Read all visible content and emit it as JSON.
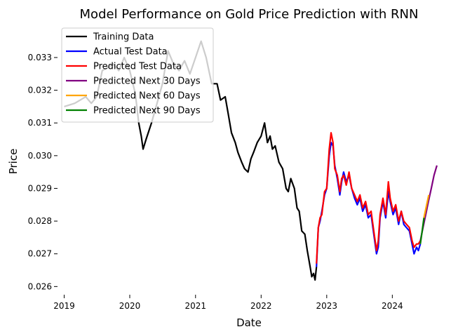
{
  "chart_data": {
    "type": "line",
    "title": "Model Performance on Gold Price Prediction with RNN",
    "xlabel": "Date",
    "ylabel": "Price",
    "xlim": [
      "2018-11-25",
      "2024-09-25"
    ],
    "ylim": [
      0.02575,
      0.0339
    ],
    "grid": false,
    "legend_position": "upper-left",
    "x_ticks": [
      "2019",
      "2020",
      "2021",
      "2022",
      "2023",
      "2024"
    ],
    "y_ticks": [
      "0.026",
      "0.027",
      "0.028",
      "0.029",
      "0.030",
      "0.031",
      "0.032",
      "0.033"
    ],
    "series": [
      {
        "name": "Training Data",
        "color": "#000000",
        "points": [
          [
            "2019-01-01",
            0.0315
          ],
          [
            "2019-03-01",
            0.0316
          ],
          [
            "2019-05-01",
            0.0318
          ],
          [
            "2019-06-01",
            0.0316
          ],
          [
            "2019-07-01",
            0.0318
          ],
          [
            "2019-08-01",
            0.0326
          ],
          [
            "2019-09-01",
            0.0327
          ],
          [
            "2019-10-01",
            0.0328
          ],
          [
            "2019-11-01",
            0.0326
          ],
          [
            "2019-12-01",
            0.033
          ],
          [
            "2020-01-01",
            0.0326
          ],
          [
            "2020-02-01",
            0.0319
          ],
          [
            "2020-02-20",
            0.031
          ],
          [
            "2020-03-05",
            0.0306
          ],
          [
            "2020-03-15",
            0.0302
          ],
          [
            "2020-04-01",
            0.0305
          ],
          [
            "2020-05-01",
            0.031
          ],
          [
            "2020-06-01",
            0.0316
          ],
          [
            "2020-07-01",
            0.0322
          ],
          [
            "2020-08-01",
            0.0332
          ],
          [
            "2020-09-01",
            0.0328
          ],
          [
            "2020-10-01",
            0.0326
          ],
          [
            "2020-11-01",
            0.0329
          ],
          [
            "2020-12-01",
            0.0325
          ],
          [
            "2021-01-01",
            0.033
          ],
          [
            "2021-02-01",
            0.0335
          ],
          [
            "2021-03-01",
            0.033
          ],
          [
            "2021-04-01",
            0.0322
          ],
          [
            "2021-05-01",
            0.0322
          ],
          [
            "2021-05-20",
            0.0317
          ],
          [
            "2021-06-15",
            0.0318
          ],
          [
            "2021-07-01",
            0.0313
          ],
          [
            "2021-07-20",
            0.0307
          ],
          [
            "2021-08-10",
            0.0304
          ],
          [
            "2021-08-25",
            0.0301
          ],
          [
            "2021-09-15",
            0.0298
          ],
          [
            "2021-10-01",
            0.0296
          ],
          [
            "2021-10-20",
            0.0295
          ],
          [
            "2021-11-05",
            0.0299
          ],
          [
            "2021-11-20",
            0.0301
          ],
          [
            "2021-12-10",
            0.0304
          ],
          [
            "2022-01-01",
            0.0306
          ],
          [
            "2022-01-20",
            0.031
          ],
          [
            "2022-02-05",
            0.0304
          ],
          [
            "2022-02-20",
            0.0306
          ],
          [
            "2022-03-05",
            0.0302
          ],
          [
            "2022-03-20",
            0.0303
          ],
          [
            "2022-04-10",
            0.0298
          ],
          [
            "2022-05-01",
            0.0296
          ],
          [
            "2022-05-20",
            0.029
          ],
          [
            "2022-06-01",
            0.0289
          ],
          [
            "2022-06-15",
            0.0293
          ],
          [
            "2022-07-05",
            0.029
          ],
          [
            "2022-07-20",
            0.0284
          ],
          [
            "2022-08-01",
            0.0283
          ],
          [
            "2022-08-15",
            0.0277
          ],
          [
            "2022-09-01",
            0.0276
          ],
          [
            "2022-09-15",
            0.0271
          ],
          [
            "2022-10-01",
            0.0266
          ],
          [
            "2022-10-10",
            0.0263
          ],
          [
            "2022-10-20",
            0.0264
          ],
          [
            "2022-10-28",
            0.0262
          ],
          [
            "2022-11-05",
            0.0266
          ]
        ]
      },
      {
        "name": "Actual Test Data",
        "color": "#0000ff",
        "points": [
          [
            "2022-11-05",
            0.0266
          ],
          [
            "2022-11-15",
            0.0278
          ],
          [
            "2022-11-25",
            0.028
          ],
          [
            "2022-12-05",
            0.0283
          ],
          [
            "2022-12-20",
            0.0288
          ],
          [
            "2023-01-01",
            0.029
          ],
          [
            "2023-01-15",
            0.03
          ],
          [
            "2023-01-25",
            0.0304
          ],
          [
            "2023-02-05",
            0.0303
          ],
          [
            "2023-02-15",
            0.0297
          ],
          [
            "2023-03-01",
            0.0293
          ],
          [
            "2023-03-15",
            0.0288
          ],
          [
            "2023-03-25",
            0.0292
          ],
          [
            "2023-04-05",
            0.0295
          ],
          [
            "2023-04-20",
            0.0292
          ],
          [
            "2023-05-05",
            0.0294
          ],
          [
            "2023-05-20",
            0.029
          ],
          [
            "2023-06-05",
            0.0287
          ],
          [
            "2023-06-20",
            0.0285
          ],
          [
            "2023-07-05",
            0.0287
          ],
          [
            "2023-07-20",
            0.0283
          ],
          [
            "2023-08-05",
            0.0285
          ],
          [
            "2023-08-20",
            0.0281
          ],
          [
            "2023-09-05",
            0.0282
          ],
          [
            "2023-09-20",
            0.0276
          ],
          [
            "2023-10-05",
            0.027
          ],
          [
            "2023-10-15",
            0.0272
          ],
          [
            "2023-10-25",
            0.0281
          ],
          [
            "2023-11-10",
            0.0286
          ],
          [
            "2023-11-25",
            0.0281
          ],
          [
            "2023-12-10",
            0.0289
          ],
          [
            "2023-12-20",
            0.0286
          ],
          [
            "2024-01-05",
            0.0282
          ],
          [
            "2024-01-20",
            0.0284
          ],
          [
            "2024-02-05",
            0.0279
          ],
          [
            "2024-02-20",
            0.0283
          ],
          [
            "2024-03-05",
            0.0279
          ],
          [
            "2024-03-20",
            0.0278
          ],
          [
            "2024-04-05",
            0.0277
          ],
          [
            "2024-04-20",
            0.0273
          ],
          [
            "2024-05-01",
            0.027
          ],
          [
            "2024-05-15",
            0.0272
          ],
          [
            "2024-05-25",
            0.0271
          ],
          [
            "2024-06-05",
            0.0273
          ]
        ]
      },
      {
        "name": "Predicted Test Data",
        "color": "#ff0000",
        "points": [
          [
            "2022-11-05",
            0.0267
          ],
          [
            "2022-11-15",
            0.0278
          ],
          [
            "2022-11-25",
            0.0281
          ],
          [
            "2022-12-05",
            0.0282
          ],
          [
            "2022-12-20",
            0.0289
          ],
          [
            "2023-01-01",
            0.029
          ],
          [
            "2023-01-15",
            0.0302
          ],
          [
            "2023-01-25",
            0.0307
          ],
          [
            "2023-02-05",
            0.0304
          ],
          [
            "2023-02-15",
            0.0296
          ],
          [
            "2023-03-01",
            0.0294
          ],
          [
            "2023-03-15",
            0.0289
          ],
          [
            "2023-03-25",
            0.0293
          ],
          [
            "2023-04-05",
            0.0294
          ],
          [
            "2023-04-20",
            0.0291
          ],
          [
            "2023-05-05",
            0.0295
          ],
          [
            "2023-05-20",
            0.029
          ],
          [
            "2023-06-05",
            0.0288
          ],
          [
            "2023-06-20",
            0.0286
          ],
          [
            "2023-07-05",
            0.0288
          ],
          [
            "2023-07-20",
            0.0284
          ],
          [
            "2023-08-05",
            0.0286
          ],
          [
            "2023-08-20",
            0.0282
          ],
          [
            "2023-09-05",
            0.0283
          ],
          [
            "2023-09-20",
            0.0277
          ],
          [
            "2023-10-05",
            0.0271
          ],
          [
            "2023-10-15",
            0.0274
          ],
          [
            "2023-10-25",
            0.0282
          ],
          [
            "2023-11-10",
            0.0287
          ],
          [
            "2023-11-25",
            0.0282
          ],
          [
            "2023-12-10",
            0.0292
          ],
          [
            "2023-12-20",
            0.0287
          ],
          [
            "2024-01-05",
            0.0283
          ],
          [
            "2024-01-20",
            0.0285
          ],
          [
            "2024-02-05",
            0.028
          ],
          [
            "2024-02-20",
            0.0283
          ],
          [
            "2024-03-05",
            0.028
          ],
          [
            "2024-03-20",
            0.0279
          ],
          [
            "2024-04-05",
            0.0278
          ],
          [
            "2024-04-20",
            0.0274
          ],
          [
            "2024-05-01",
            0.0272
          ],
          [
            "2024-05-15",
            0.0273
          ],
          [
            "2024-05-25",
            0.0273
          ],
          [
            "2024-06-05",
            0.0274
          ]
        ]
      },
      {
        "name": "Predicted Next 30 Days",
        "color": "#800080",
        "points": [
          [
            "2024-06-05",
            0.0274
          ],
          [
            "2024-06-20",
            0.0278
          ],
          [
            "2024-07-05",
            0.0282
          ],
          [
            "2024-07-20",
            0.0286
          ],
          [
            "2024-08-05",
            0.029
          ],
          [
            "2024-08-20",
            0.0294
          ],
          [
            "2024-09-05",
            0.0297
          ]
        ]
      },
      {
        "name": "Predicted Next 60 Days",
        "color": "#ffa500",
        "points": [
          [
            "2024-06-25",
            0.0281
          ],
          [
            "2024-07-10",
            0.0285
          ],
          [
            "2024-07-22",
            0.0288
          ]
        ]
      },
      {
        "name": "Predicted Next 90 Days",
        "color": "#008000",
        "points": [
          [
            "2024-06-05",
            0.0273
          ],
          [
            "2024-06-15",
            0.0277
          ],
          [
            "2024-06-25",
            0.0281
          ]
        ]
      }
    ]
  }
}
